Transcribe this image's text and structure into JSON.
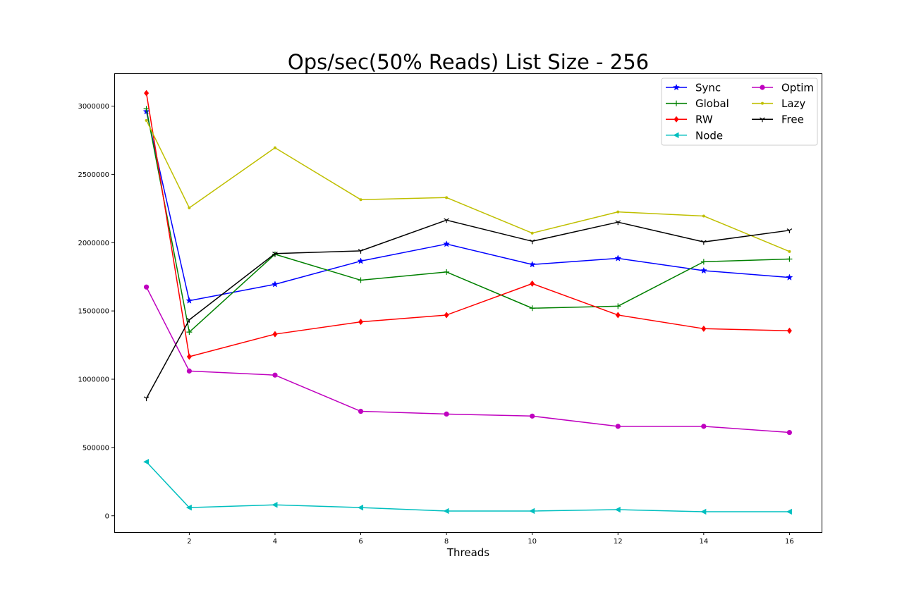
{
  "chart_data": {
    "type": "line",
    "title": "Ops/sec(50% Reads) List Size - 256",
    "xlabel": "Threads",
    "ylabel": "",
    "x": [
      1,
      2,
      4,
      6,
      8,
      10,
      12,
      14,
      16
    ],
    "xticks": [
      2,
      4,
      6,
      8,
      10,
      12,
      14,
      16
    ],
    "yticks": [
      0,
      500000,
      1000000,
      1500000,
      2000000,
      2500000,
      3000000
    ],
    "xlim": [
      0.25,
      16.75
    ],
    "ylim": [
      -120000,
      3240000
    ],
    "grid": false,
    "legend_position": "top-right",
    "legend_columns": 2,
    "series": [
      {
        "name": "Sync",
        "color": "#0000ff",
        "marker": "star",
        "values": [
          2960000,
          1575000,
          1695000,
          1865000,
          1990000,
          1840000,
          1885000,
          1795000,
          1745000
        ]
      },
      {
        "name": "Global",
        "color": "#008000",
        "marker": "plus",
        "values": [
          2980000,
          1345000,
          1915000,
          1725000,
          1785000,
          1520000,
          1535000,
          1860000,
          1880000
        ]
      },
      {
        "name": "RW",
        "color": "#ff0000",
        "marker": "diamond",
        "values": [
          3095000,
          1165000,
          1330000,
          1420000,
          1470000,
          1700000,
          1470000,
          1370000,
          1355000
        ]
      },
      {
        "name": "Node",
        "color": "#00bfbf",
        "marker": "triangle-left",
        "values": [
          395000,
          60000,
          80000,
          60000,
          35000,
          35000,
          45000,
          30000,
          30000
        ]
      },
      {
        "name": "Optim",
        "color": "#bf00bf",
        "marker": "circle",
        "values": [
          1675000,
          1060000,
          1030000,
          765000,
          745000,
          730000,
          655000,
          655000,
          610000
        ]
      },
      {
        "name": "Lazy",
        "color": "#bfbf00",
        "marker": "point",
        "values": [
          2895000,
          2255000,
          2695000,
          2315000,
          2330000,
          2070000,
          2225000,
          2195000,
          1935000
        ]
      },
      {
        "name": "Free",
        "color": "#000000",
        "marker": "tri-down",
        "values": [
          860000,
          1435000,
          1920000,
          1940000,
          2165000,
          2010000,
          2150000,
          2005000,
          2090000
        ]
      }
    ]
  }
}
